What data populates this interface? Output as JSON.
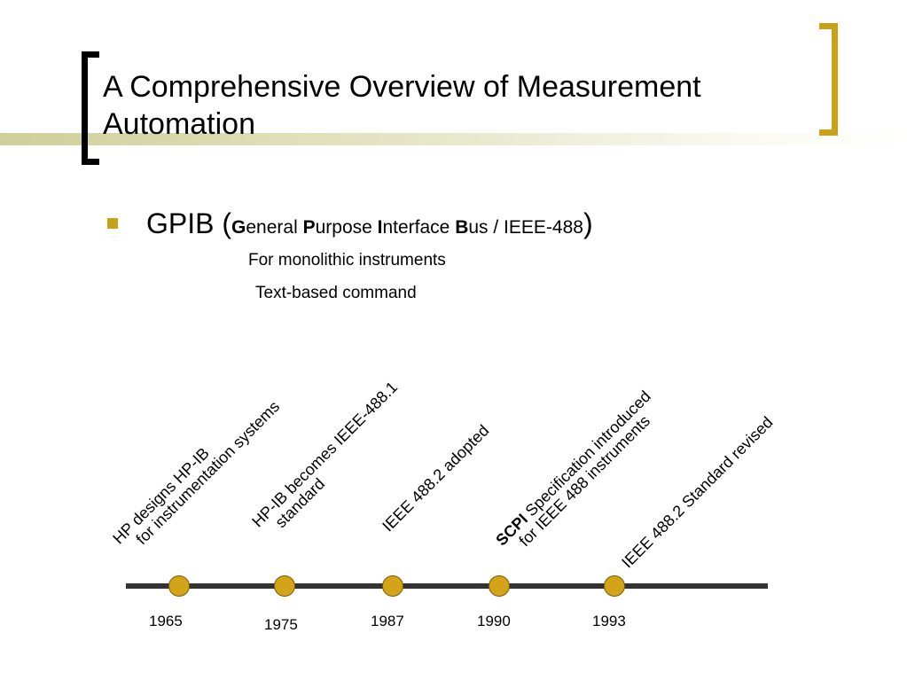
{
  "slide": {
    "title": "A Comprehensive Overview of Measurement Automation",
    "bullet": {
      "prefix": "GPIB (",
      "parts": [
        {
          "initial": "G",
          "rest": "eneral "
        },
        {
          "initial": "P",
          "rest": "urpose "
        },
        {
          "initial": "I",
          "rest": "nterface "
        },
        {
          "initial": "B",
          "rest": "us / IEEE-488"
        }
      ],
      "suffix": ")"
    },
    "sub_items": [
      "For monolithic instruments",
      "Text-based command"
    ],
    "colors": {
      "accent": "#c9a21a",
      "band": "#d6d6a8",
      "dot": "#d4a418",
      "line": "#333333"
    }
  },
  "timeline": [
    {
      "year": "1965",
      "line1": "HP designs HP-IB",
      "line2": "for instrumentation systems"
    },
    {
      "year": "1975",
      "line1": "HP-IB becomes IEEE-488.1",
      "line2": "standard"
    },
    {
      "year": "1987",
      "line1": "IEEE 488.2 adopted",
      "line2": ""
    },
    {
      "year": "1990",
      "line1_bold": "SCPI",
      "line1": " Specification introduced",
      "line2": "for IEEE 488 instruments"
    },
    {
      "year": "1993",
      "line1": "IEEE 488.2 Standard revised",
      "line2": ""
    }
  ]
}
